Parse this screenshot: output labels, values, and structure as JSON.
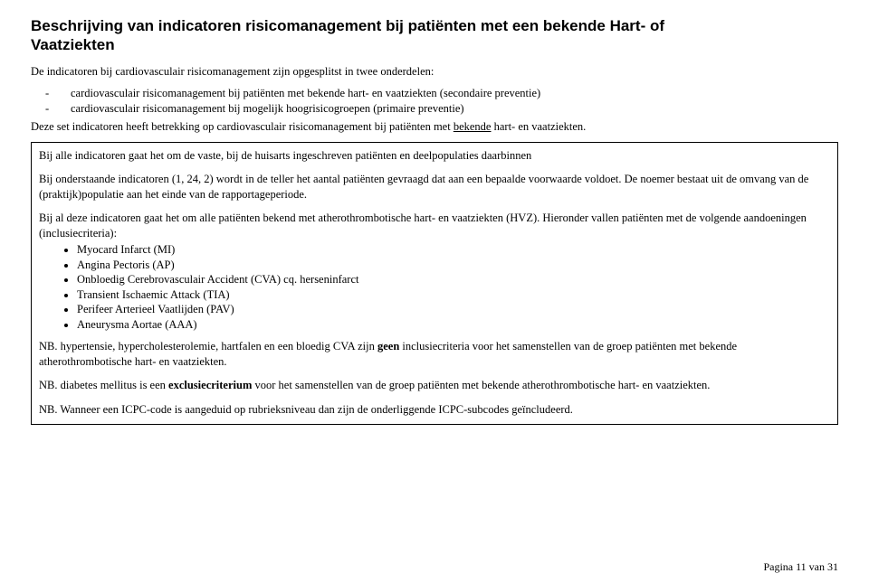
{
  "title_line1": "Beschrijving van indicatoren risicomanagement bij patiënten met een bekende Hart- of",
  "title_line2": "Vaatziekten",
  "intro": "De indicatoren bij cardiovasculair risicomanagement zijn opgesplitst in twee onderdelen:",
  "dash_items": [
    "cardiovasculair risicomanagement bij patiënten met bekende hart- en vaatziekten (secondaire preventie)",
    "cardiovasculair risicomanagement bij mogelijk hoogrisicogroepen (primaire preventie)"
  ],
  "after_dash_pre": "Deze set indicatoren heeft betrekking op cardiovasculair risicomanagement bij patiënten met ",
  "after_dash_u": "bekende",
  "after_dash_post": " hart- en vaatziekten.",
  "box_p1": "Bij alle indicatoren gaat het om de vaste, bij de huisarts ingeschreven patiënten en deelpopulaties daarbinnen",
  "box_p2": "Bij onderstaande indicatoren (1, 24, 2) wordt in de teller het aantal patiënten gevraagd dat aan een bepaalde voorwaarde voldoet. De  noemer bestaat uit de omvang van de (praktijk)populatie aan het einde van de rapportageperiode.",
  "box_p3": "Bij al deze indicatoren gaat het om alle patiënten bekend met atherothrombotische hart- en vaatziekten (HVZ). Hieronder vallen patiënten met de volgende aandoeningen (inclusiecriteria):",
  "bullets": [
    "Myocard Infarct (MI)",
    "Angina Pectoris (AP)",
    "Onbloedig Cerebrovasculair Accident (CVA) cq. herseninfarct",
    "Transient Ischaemic Attack (TIA)",
    "Perifeer Arterieel Vaatlijden (PAV)",
    "Aneurysma Aortae (AAA)"
  ],
  "nb1_pre": "NB. hypertensie, hypercholesterolemie, hartfalen en een bloedig CVA zijn ",
  "nb1_b": "geen",
  "nb1_post": " inclusiecriteria voor het samenstellen van de groep patiënten met bekende atherothrombotische hart- en vaatziekten.",
  "nb2_pre": "NB. diabetes mellitus is een ",
  "nb2_b": "exclusiecriterium",
  "nb2_post": " voor het samenstellen van de groep patiënten met bekende atherothrombotische hart- en vaatziekten.",
  "nb3": "NB. Wanneer een ICPC-code is aangeduid op rubrieksniveau dan zijn de onderliggende ICPC-subcodes geïncludeerd.",
  "footer": "Pagina 11 van 31"
}
